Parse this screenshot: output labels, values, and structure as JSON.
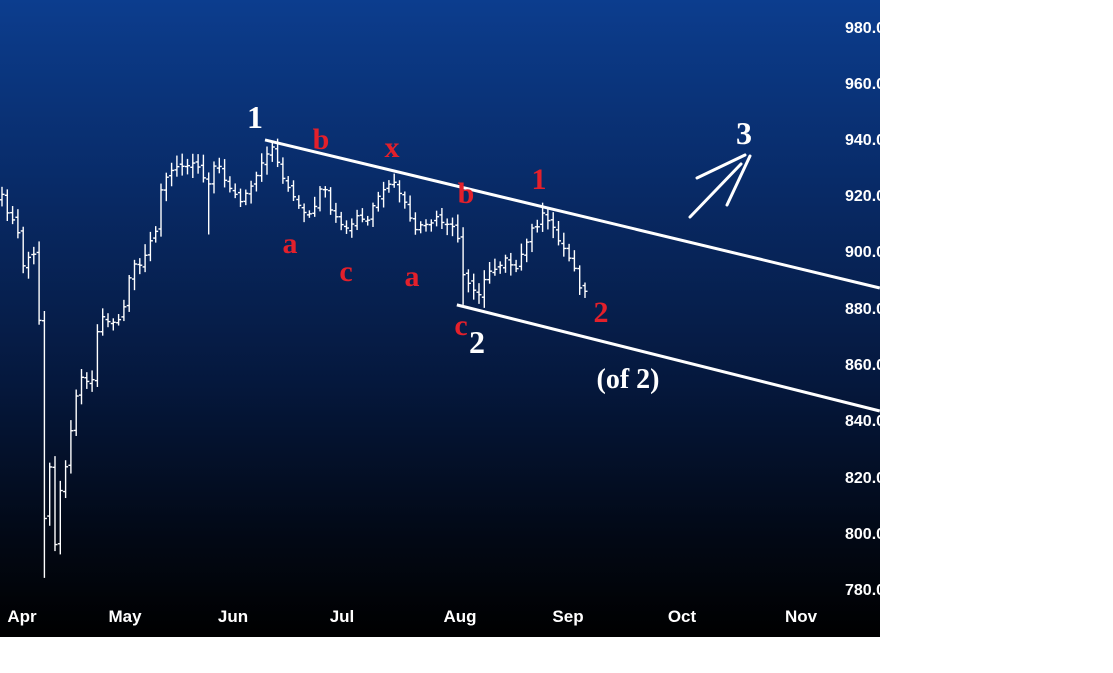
{
  "chart_data": {
    "type": "ohlc",
    "title": "",
    "x_unit": "trading day index",
    "x_ticks": [
      {
        "label": "Apr",
        "day": 4.2
      },
      {
        "label": "May",
        "day": 23.6
      },
      {
        "label": "Jun",
        "day": 44
      },
      {
        "label": "Jul",
        "day": 64.5
      },
      {
        "label": "Aug",
        "day": 86.8
      },
      {
        "label": "Sep",
        "day": 107.2
      },
      {
        "label": "Oct",
        "day": 128.7
      },
      {
        "label": "Nov",
        "day": 151.1
      }
    ],
    "y_ticks": [
      "980.00",
      "960.00",
      "940.00",
      "920.00",
      "900.00",
      "880.00",
      "860.00",
      "840.00",
      "820.00",
      "800.00",
      "780.00"
    ],
    "ylim": [
      780,
      980
    ],
    "close_path": [
      [
        0,
        920
      ],
      [
        3,
        908
      ],
      [
        4,
        896
      ],
      [
        6,
        901
      ],
      [
        6.3,
        889
      ],
      [
        7,
        877
      ],
      [
        7.5,
        838
      ],
      [
        8,
        806
      ],
      [
        9,
        823
      ],
      [
        9.5,
        802
      ],
      [
        10.4,
        791
      ],
      [
        11.3,
        830
      ],
      [
        12.3,
        820
      ],
      [
        13.2,
        841
      ],
      [
        14.2,
        852
      ],
      [
        15,
        855
      ],
      [
        17,
        855
      ],
      [
        18,
        873
      ],
      [
        19,
        877
      ],
      [
        20.8,
        875
      ],
      [
        22.6,
        878
      ],
      [
        23.6,
        889
      ],
      [
        24.5,
        896
      ],
      [
        26.4,
        898
      ],
      [
        28,
        905
      ],
      [
        29.2,
        907
      ],
      [
        29.8,
        921
      ],
      [
        31,
        928
      ],
      [
        33,
        932
      ],
      [
        35,
        930
      ],
      [
        36.8,
        932
      ],
      [
        38.7,
        923
      ],
      [
        39.6,
        928
      ],
      [
        40.6,
        933
      ],
      [
        42.5,
        925
      ],
      [
        43.4,
        921
      ],
      [
        45.3,
        919
      ],
      [
        47.2,
        926
      ],
      [
        49,
        933
      ],
      [
        50.6,
        939
      ],
      [
        51.9,
        933
      ],
      [
        53.8,
        923
      ],
      [
        55.7,
        919
      ],
      [
        57.5,
        914
      ],
      [
        59.4,
        919
      ],
      [
        60.4,
        928
      ],
      [
        61.3,
        919
      ],
      [
        63.2,
        914
      ],
      [
        65,
        909
      ],
      [
        67,
        914
      ],
      [
        68.9,
        912
      ],
      [
        70.8,
        921
      ],
      [
        72.6,
        926
      ],
      [
        74.5,
        925
      ],
      [
        76.4,
        916
      ],
      [
        78.3,
        909
      ],
      [
        80.2,
        911
      ],
      [
        82,
        914
      ],
      [
        84,
        911
      ],
      [
        85.8,
        909
      ],
      [
        86.8,
        894
      ],
      [
        87.7,
        889
      ],
      [
        89.6,
        885
      ],
      [
        91.5,
        893
      ],
      [
        93.4,
        894
      ],
      [
        95.3,
        898
      ],
      [
        97.2,
        896
      ],
      [
        99,
        905
      ],
      [
        101,
        911
      ],
      [
        101.9,
        916
      ],
      [
        103.8,
        909
      ],
      [
        105.7,
        903
      ],
      [
        107.5,
        896
      ],
      [
        109.4,
        887
      ],
      [
        110.4,
        886
      ]
    ],
    "low_overrides": [
      [
        8,
        785
      ],
      [
        39,
        907
      ],
      [
        87,
        882
      ]
    ],
    "trendlines": [
      {
        "name": "upper-channel",
        "from": [
          50,
          940.6
        ],
        "to": [
          166,
          888
        ]
      },
      {
        "name": "lower-channel",
        "from": [
          86.2,
          882
        ],
        "to": [
          166,
          844.3
        ]
      }
    ],
    "annotations": {
      "w1": "1",
      "b1": "b",
      "x1": "x",
      "b2": "b",
      "r1": "1",
      "a1": "a",
      "c1": "c",
      "a2": "a",
      "c2": "c",
      "w2": "2",
      "r2": "2",
      "of2": "(of 2)",
      "w3": "3"
    },
    "colors": {
      "bars": "#ffffff",
      "red_label": "#e3202b",
      "white_label": "#ffffff"
    }
  }
}
